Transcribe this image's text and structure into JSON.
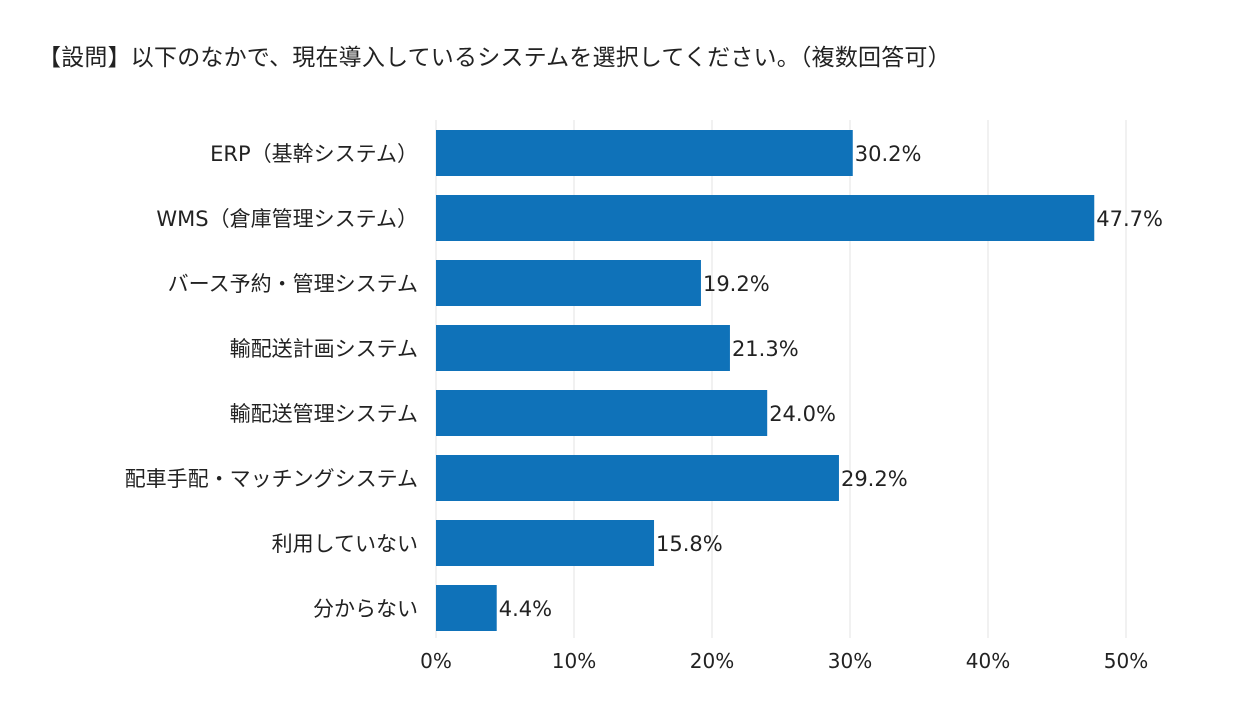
{
  "chart_data": {
    "type": "bar",
    "orientation": "horizontal",
    "title": "【設問】以下のなかで、現在導入しているシステムを選択してください。（複数回答可）",
    "categories": [
      "ERP（基幹システム）",
      "WMS（倉庫管理システム）",
      "バース予約・管理システム",
      "輸配送計画システム",
      "輸配送管理システム",
      "配車手配・マッチングシステム",
      "利用していない",
      "分からない"
    ],
    "values": [
      30.2,
      47.7,
      19.2,
      21.3,
      24.0,
      29.2,
      15.8,
      4.4
    ],
    "value_labels": [
      "30.2%",
      "47.7%",
      "19.2%",
      "21.3%",
      "24.0%",
      "29.2%",
      "15.8%",
      "4.4%"
    ],
    "xlim": [
      0,
      50
    ],
    "xticks": [
      0,
      10,
      20,
      30,
      40,
      50
    ],
    "xtick_labels": [
      "0%",
      "10%",
      "20%",
      "30%",
      "40%",
      "50%"
    ],
    "xlabel": "",
    "ylabel": "",
    "grid": "vertical",
    "legend": "none",
    "bar_color": "#0f72b9",
    "grid_color": "#e3e3e3"
  }
}
